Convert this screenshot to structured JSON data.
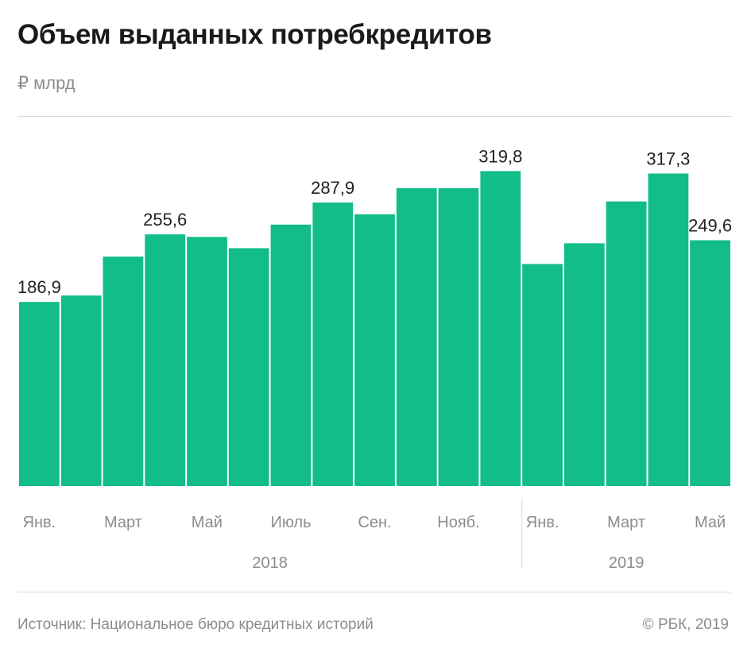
{
  "header": {
    "title": "Объем выданных потребкредитов",
    "unit": "₽ млрд"
  },
  "footer": {
    "source": "Источник: Национальное бюро кредитных историй",
    "copyright": "© РБК, 2019"
  },
  "colors": {
    "bar": "#13bd8a",
    "label": "#222222",
    "axis_text": "#8c8c8c",
    "divider": "#d9d9d9"
  },
  "chart_data": {
    "type": "bar",
    "title": "Объем выданных потребкредитов",
    "ylabel": "₽ млрд",
    "xlabel": "",
    "categories": [
      "2018-01",
      "2018-02",
      "2018-03",
      "2018-04",
      "2018-05",
      "2018-06",
      "2018-07",
      "2018-08",
      "2018-09",
      "2018-10",
      "2018-11",
      "2018-12",
      "2019-01",
      "2019-02",
      "2019-03",
      "2019-04",
      "2019-05"
    ],
    "values": [
      186.9,
      193.5,
      233.0,
      255.6,
      253.0,
      241.5,
      265.5,
      287.9,
      276.0,
      302.5,
      302.5,
      319.8,
      225.5,
      246.5,
      289.0,
      317.3,
      249.6
    ],
    "data_labels": [
      {
        "index": 0,
        "text": "186,9"
      },
      {
        "index": 3,
        "text": "255,6"
      },
      {
        "index": 7,
        "text": "287,9"
      },
      {
        "index": 11,
        "text": "319,8"
      },
      {
        "index": 15,
        "text": "317,3"
      },
      {
        "index": 16,
        "text": "249,6"
      }
    ],
    "tick_labels": [
      {
        "index": 0,
        "text": "Янв."
      },
      {
        "index": 2,
        "text": "Март"
      },
      {
        "index": 4,
        "text": "Май"
      },
      {
        "index": 6,
        "text": "Июль"
      },
      {
        "index": 8,
        "text": "Сен."
      },
      {
        "index": 10,
        "text": "Нояб."
      },
      {
        "index": 12,
        "text": "Янв."
      },
      {
        "index": 14,
        "text": "Март"
      },
      {
        "index": 16,
        "text": "Май"
      }
    ],
    "year_groups": [
      {
        "label": "2018",
        "start": 0,
        "end": 11
      },
      {
        "label": "2019",
        "start": 12,
        "end": 16
      }
    ],
    "ylim": [
      0,
      340
    ],
    "grid": false,
    "legend": "none"
  }
}
